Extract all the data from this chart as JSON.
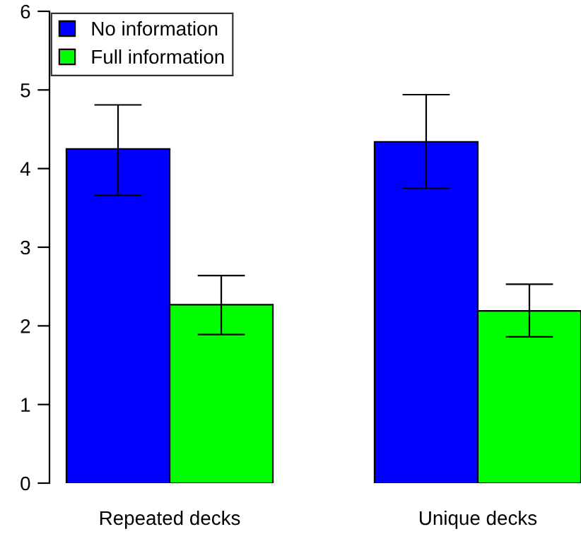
{
  "chart_data": {
    "type": "bar",
    "categories": [
      "Repeated decks",
      "Unique decks"
    ],
    "series": [
      {
        "name": "No information",
        "color": "#0000ff",
        "values": [
          4.25,
          4.34
        ],
        "errors": [
          [
            3.66,
            4.81
          ],
          [
            3.75,
            4.94
          ]
        ]
      },
      {
        "name": "Full information",
        "color": "#00ff00",
        "values": [
          2.27,
          2.19
        ],
        "errors": [
          [
            1.89,
            2.64
          ],
          [
            1.86,
            2.53
          ]
        ]
      }
    ],
    "ylim": [
      0,
      6
    ],
    "yticks": [
      0,
      1,
      2,
      3,
      4,
      5,
      6
    ],
    "grid": false,
    "legend": "top left"
  }
}
